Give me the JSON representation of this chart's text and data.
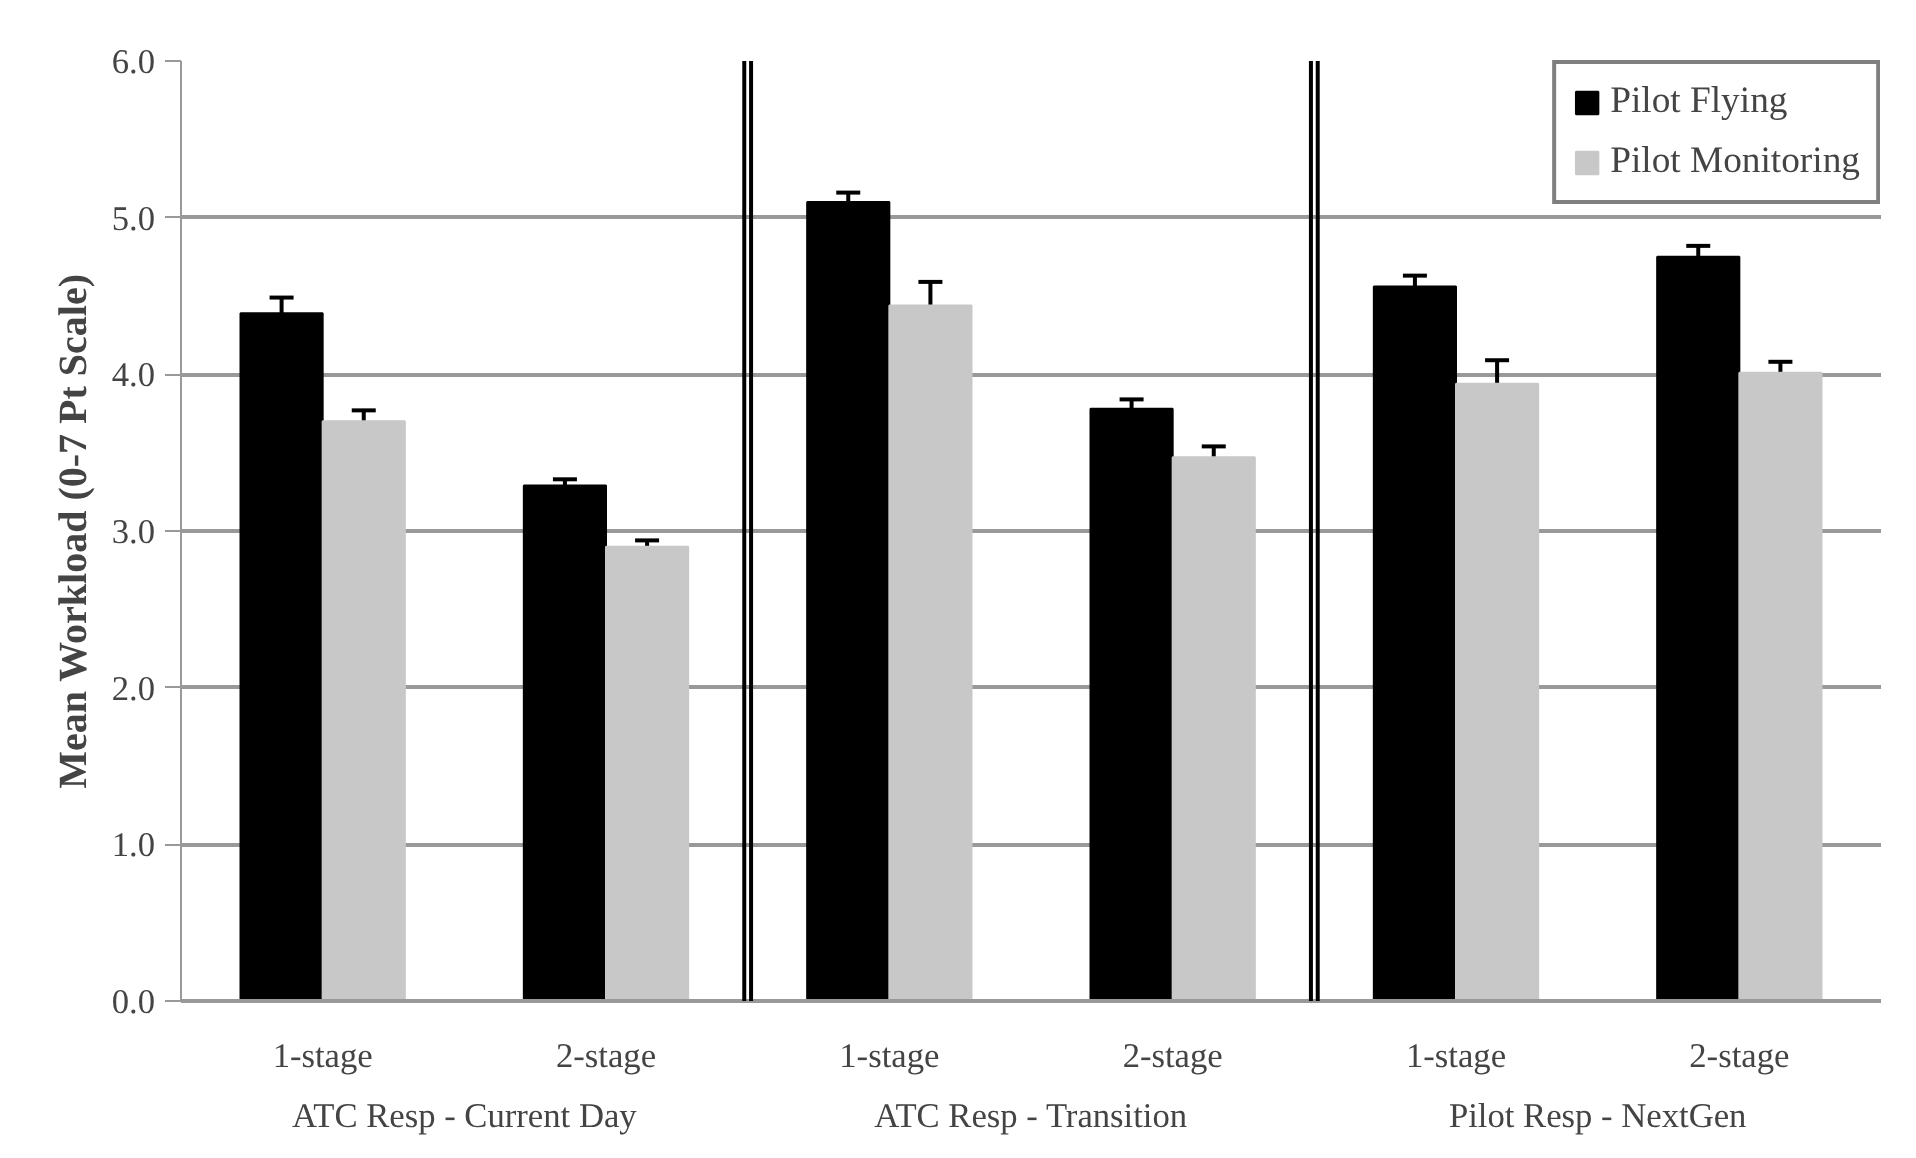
{
  "chart_data": {
    "type": "bar",
    "ylabel": "Mean Workload (0-7 Pt Scale)",
    "categories": [
      "1-stage",
      "2-stage",
      "1-stage",
      "2-stage",
      "1-stage",
      "2-stage"
    ],
    "annotations": [
      "ATC Resp - Current Day",
      "ATC Resp - Transition",
      "Pilot Resp - NextGen"
    ],
    "series": [
      {
        "name": "Pilot Flying",
        "color": "#000000",
        "values": [
          4.39,
          3.29,
          5.1,
          3.78,
          4.56,
          4.75
        ],
        "errors": [
          0.1,
          0.04,
          0.06,
          0.06,
          0.07,
          0.07
        ]
      },
      {
        "name": "Pilot Monitoring",
        "color": "#c8c8c8",
        "values": [
          3.7,
          2.9,
          4.44,
          3.47,
          3.94,
          4.01
        ],
        "errors": [
          0.07,
          0.04,
          0.15,
          0.07,
          0.15,
          0.07
        ]
      }
    ],
    "ylim": [
      0,
      6
    ],
    "yticks": [
      {
        "value": 0,
        "label": "0.0"
      },
      {
        "value": 1,
        "label": "1.0"
      },
      {
        "value": 2,
        "label": "2.0"
      },
      {
        "value": 3,
        "label": "3.0"
      },
      {
        "value": 4,
        "label": "4.0"
      },
      {
        "value": 5,
        "label": "5.0"
      },
      {
        "value": 6,
        "label": "6.0"
      }
    ],
    "grid": "y",
    "legend": "top right"
  }
}
